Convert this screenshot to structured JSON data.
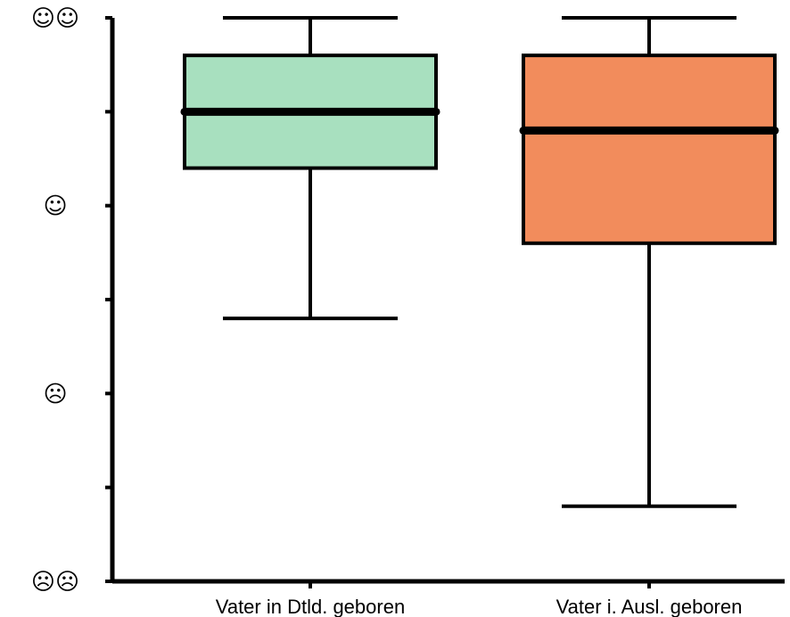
{
  "chart_data": {
    "type": "box",
    "title": "",
    "xlabel": "",
    "ylabel": "",
    "ylim": [
      1,
      7
    ],
    "y_ticks": [
      1,
      2,
      3,
      4,
      5,
      6,
      7
    ],
    "y_tick_labels": [
      {
        "value": 7,
        "text": "☺☺"
      },
      {
        "value": 5,
        "text": "☺"
      },
      {
        "value": 3,
        "text": "☹"
      },
      {
        "value": 1,
        "text": "☹☹"
      }
    ],
    "categories": [
      "Vater in Dtld. geboren",
      "Vater i. Ausl. geboren"
    ],
    "boxes": [
      {
        "category": "Vater in Dtld. geboren",
        "whisker_low": 3.8,
        "q1": 5.4,
        "median": 6.0,
        "q3": 6.6,
        "whisker_high": 7.0,
        "color": "#a8e0bf"
      },
      {
        "category": "Vater i. Ausl. geboren",
        "whisker_low": 1.8,
        "q1": 4.6,
        "median": 5.8,
        "q3": 6.6,
        "whisker_high": 7.0,
        "color": "#f28c5c"
      }
    ],
    "grid": false,
    "legend": "none"
  }
}
